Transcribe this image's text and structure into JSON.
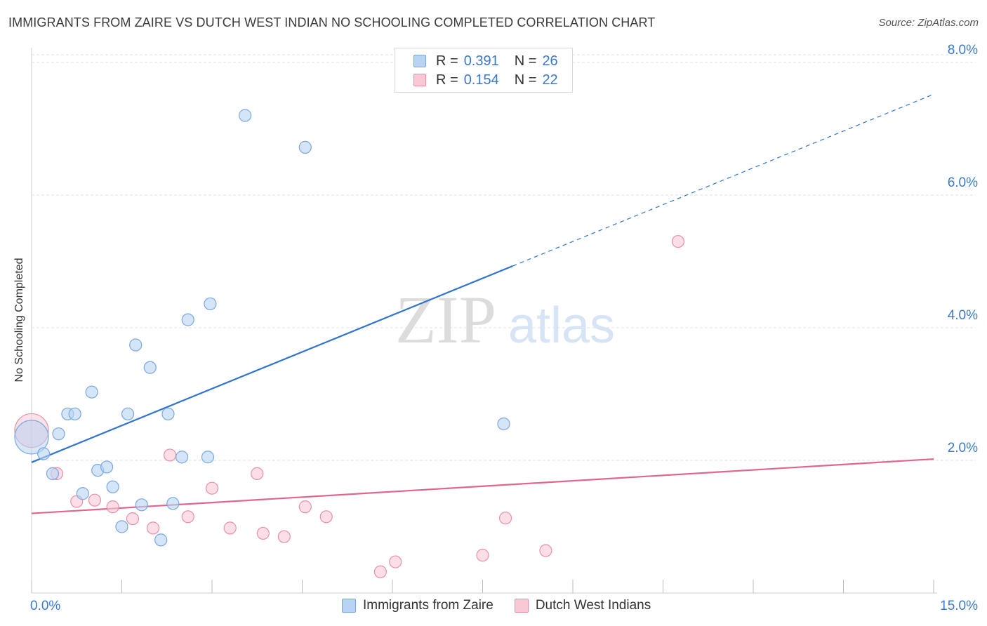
{
  "header": {
    "title": "IMMIGRANTS FROM ZAIRE VS DUTCH WEST INDIAN NO SCHOOLING COMPLETED CORRELATION CHART",
    "source": "Source: ZipAtlas.com"
  },
  "legend": {
    "series1": {
      "r_label": "R = ",
      "r_value": "0.391",
      "n_label": "N = ",
      "n_value": "26"
    },
    "series2": {
      "r_label": "R = ",
      "r_value": "0.154",
      "n_label": "N = ",
      "n_value": "22"
    }
  },
  "bottom_legend": {
    "series1_label": "Immigrants from Zaire",
    "series2_label": "Dutch West Indians"
  },
  "watermark": {
    "zip": "ZIP",
    "atlas": "atlas"
  },
  "colors": {
    "blue_fill": "#b8d3f3",
    "blue_stroke": "#7aa7e0",
    "blue_line": "#2f74d0",
    "pink_fill": "#f8c8d5",
    "pink_stroke": "#e890aa",
    "pink_line": "#e06690",
    "tick_label": "#3a78d0"
  },
  "chart_data": {
    "type": "scatter",
    "title": "IMMIGRANTS FROM ZAIRE VS DUTCH WEST INDIAN NO SCHOOLING COMPLETED CORRELATION CHART",
    "xlabel": "",
    "ylabel": "No Schooling Completed",
    "xlim": [
      0,
      15
    ],
    "ylim": [
      0,
      8.2
    ],
    "x_tick_labels": [
      {
        "value": 0,
        "label": "0.0%"
      },
      {
        "value": 15,
        "label": "15.0%"
      }
    ],
    "x_minor_ticks": [
      0,
      1.5,
      3,
      4.5,
      6,
      7.5,
      9,
      10.5,
      12,
      13.5,
      15
    ],
    "y_ticks": [
      {
        "value": 2,
        "label": "2.0%"
      },
      {
        "value": 4,
        "label": "4.0%"
      },
      {
        "value": 6,
        "label": "6.0%"
      },
      {
        "value": 8,
        "label": "8.0%"
      }
    ],
    "grid": true,
    "legend_position": "top-center",
    "series": [
      {
        "name": "Immigrants from Zaire",
        "color": "blue",
        "R": 0.391,
        "N": 26,
        "points": [
          {
            "x": 0.0,
            "y": 2.35,
            "big": true
          },
          {
            "x": 0.2,
            "y": 2.1
          },
          {
            "x": 0.35,
            "y": 1.8
          },
          {
            "x": 0.45,
            "y": 2.4
          },
          {
            "x": 0.6,
            "y": 2.7
          },
          {
            "x": 0.72,
            "y": 2.7
          },
          {
            "x": 0.85,
            "y": 1.5
          },
          {
            "x": 1.0,
            "y": 3.03
          },
          {
            "x": 1.1,
            "y": 1.85
          },
          {
            "x": 1.25,
            "y": 1.9
          },
          {
            "x": 1.35,
            "y": 1.6
          },
          {
            "x": 1.5,
            "y": 1.0
          },
          {
            "x": 1.6,
            "y": 2.7
          },
          {
            "x": 1.73,
            "y": 3.74
          },
          {
            "x": 1.83,
            "y": 1.33
          },
          {
            "x": 1.97,
            "y": 3.4
          },
          {
            "x": 2.15,
            "y": 0.8
          },
          {
            "x": 2.27,
            "y": 2.7
          },
          {
            "x": 2.35,
            "y": 1.35
          },
          {
            "x": 2.5,
            "y": 2.05
          },
          {
            "x": 2.6,
            "y": 4.12
          },
          {
            "x": 2.93,
            "y": 2.05
          },
          {
            "x": 2.97,
            "y": 4.36
          },
          {
            "x": 3.55,
            "y": 7.2
          },
          {
            "x": 4.55,
            "y": 6.72
          },
          {
            "x": 7.85,
            "y": 2.55
          }
        ],
        "trend": {
          "x0": 0,
          "y0": 1.97,
          "x1": 8.0,
          "y1": 4.93,
          "dashed_to_x": 15,
          "dashed_to_y": 7.52
        }
      },
      {
        "name": "Dutch West Indians",
        "color": "pink",
        "R": 0.154,
        "N": 22,
        "points": [
          {
            "x": 0.0,
            "y": 2.45,
            "big": true
          },
          {
            "x": 0.42,
            "y": 1.8
          },
          {
            "x": 0.75,
            "y": 1.38
          },
          {
            "x": 1.05,
            "y": 1.4
          },
          {
            "x": 1.35,
            "y": 1.3
          },
          {
            "x": 1.68,
            "y": 1.12
          },
          {
            "x": 2.02,
            "y": 0.98
          },
          {
            "x": 2.3,
            "y": 2.08
          },
          {
            "x": 2.6,
            "y": 1.15
          },
          {
            "x": 3.0,
            "y": 1.58
          },
          {
            "x": 3.3,
            "y": 0.98
          },
          {
            "x": 3.75,
            "y": 1.8
          },
          {
            "x": 3.85,
            "y": 0.9
          },
          {
            "x": 4.2,
            "y": 0.85
          },
          {
            "x": 4.55,
            "y": 1.3
          },
          {
            "x": 4.9,
            "y": 1.15
          },
          {
            "x": 5.8,
            "y": 0.32
          },
          {
            "x": 6.05,
            "y": 0.47
          },
          {
            "x": 7.5,
            "y": 0.57
          },
          {
            "x": 7.88,
            "y": 1.13
          },
          {
            "x": 8.55,
            "y": 0.64
          },
          {
            "x": 10.75,
            "y": 5.3
          }
        ],
        "trend": {
          "x0": 0,
          "y0": 1.2,
          "x1": 15,
          "y1": 2.02
        }
      }
    ]
  }
}
